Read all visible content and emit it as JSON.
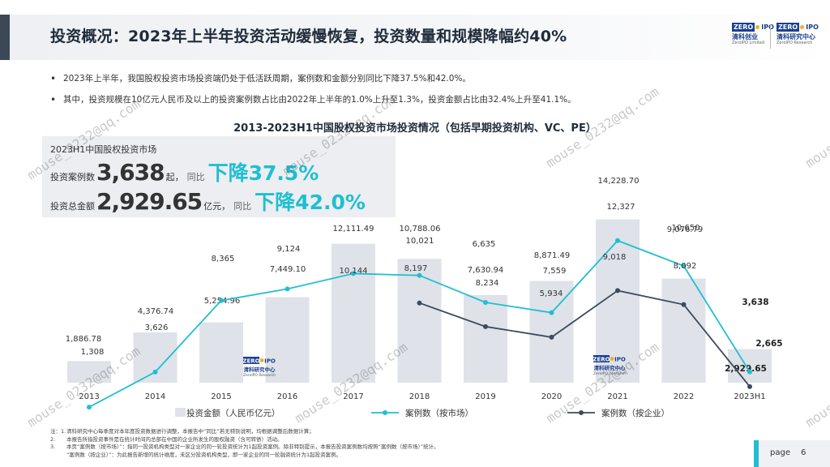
{
  "header": {
    "title": "投资概况：2023年上半年投资活动缓慢恢复，投资数量和规模降幅约40%",
    "logo_left": {
      "zero": "ZERO",
      "ipo": "IPO",
      "cn": "清科创业",
      "en": "ZeroIPO Limited"
    },
    "logo_right": {
      "zero": "ZERO",
      "ipo": "IPO",
      "cn": "清科研究中心",
      "en": "ZeroIPO Research"
    }
  },
  "bullets": [
    "2023年上半年，我国股权投资市场投资端仍处于低活跃周期，案例数和金额分别同比下降37.5%和42.0%。",
    "其中，投资规模在10亿元人民币及以上的投资案例数占比由2022年上半年的1.0%上升至1.3%，投资金额占比由32.4%上升至41.1%。"
  ],
  "summary": {
    "heading": "2023H1中国股权投资市场",
    "cases_label": "投资案例数",
    "cases_value": "3,638",
    "cases_unit": "起，",
    "cases_compare": "同比",
    "cases_change": "下降37.5%",
    "amount_label": "投资总金额",
    "amount_value": "2,929.65",
    "amount_unit": "亿元，",
    "amount_compare": "同比",
    "amount_change": "下降42.0%"
  },
  "chart_data": {
    "type": "bar",
    "title": "2013-2023H1中国股权投资市场投资情况（包括早期投资机构、VC、PE）",
    "categories": [
      "2013",
      "2014",
      "2015",
      "2016",
      "2017",
      "2018",
      "2019",
      "2020",
      "2021",
      "2022",
      "2023H1"
    ],
    "series": [
      {
        "name": "投资金额（人民币亿元）",
        "type": "bar",
        "color": "#dfe2e9",
        "values": [
          1886.78,
          4376.74,
          5254.96,
          7449.1,
          12111.49,
          10788.06,
          7630.94,
          8871.49,
          14228.7,
          9076.79,
          2929.65
        ],
        "labels": [
          "1,886.78",
          "4,376.74",
          "5,254.96",
          "7,449.10",
          "12,111.49",
          "10,788.06",
          "7,630.94",
          "8,871.49",
          "14,228.70",
          "9,076.79",
          "2,929.65"
        ]
      },
      {
        "name": "案例数（按市场）",
        "type": "line",
        "color": "#1fbfd0",
        "values": [
          1308,
          3626,
          8365,
          9124,
          10144,
          10021,
          8234,
          7559,
          12327,
          10650,
          3638
        ],
        "labels": [
          "1,308",
          "3,626",
          "8,365",
          "9,124",
          "10,144",
          "10,021",
          "8,234",
          "7,559",
          "12,327",
          "10,650",
          "3,638"
        ]
      },
      {
        "name": "案例数（按企业）",
        "type": "line",
        "color": "#3c4a5c",
        "x": [
          "2018",
          "2019",
          "2020",
          "2021",
          "2022",
          "2023H1"
        ],
        "values": [
          8197,
          6635,
          5934,
          9018,
          8092,
          2665
        ],
        "labels": [
          "8,197",
          "6,635",
          "5,934",
          "9,018",
          "8,092",
          "2,665"
        ]
      }
    ],
    "legend_position": "bottom",
    "grid": false
  },
  "chart_logo": {
    "zero": "ZERO",
    "ipo": "IPO",
    "cn": "清科研究中心",
    "en": "ZeroIPO Research"
  },
  "notes": [
    {
      "key": "注：1.",
      "text": "清科研究中心每季度对本年度投资数据进行调整，本报告中“同比”若无特别说明，均根据调整后数据计算；"
    },
    {
      "key": "2.",
      "text": "本报告所指投资事件是在统计时间内总部在中国的企业所发生的股权融资（含可转债）活动。"
    },
    {
      "key": "3.",
      "text": "本页“案例数（按市场）”：指同一投资机构类型对一家企业的同一轮投资统计为1起投资案例。除非特别提示，本报告投资案例数均按照“案例数（按市场）”统计。"
    },
    {
      "key": "",
      "text": "“案例数（按企业）”：为此报告新增的统计维度，未区分投资机构类型，即一家企业的同一轮融资统计为1起投资案例。"
    }
  ],
  "page": {
    "label": "page",
    "number": "6"
  },
  "watermark": "mouse_0232@qq.com"
}
